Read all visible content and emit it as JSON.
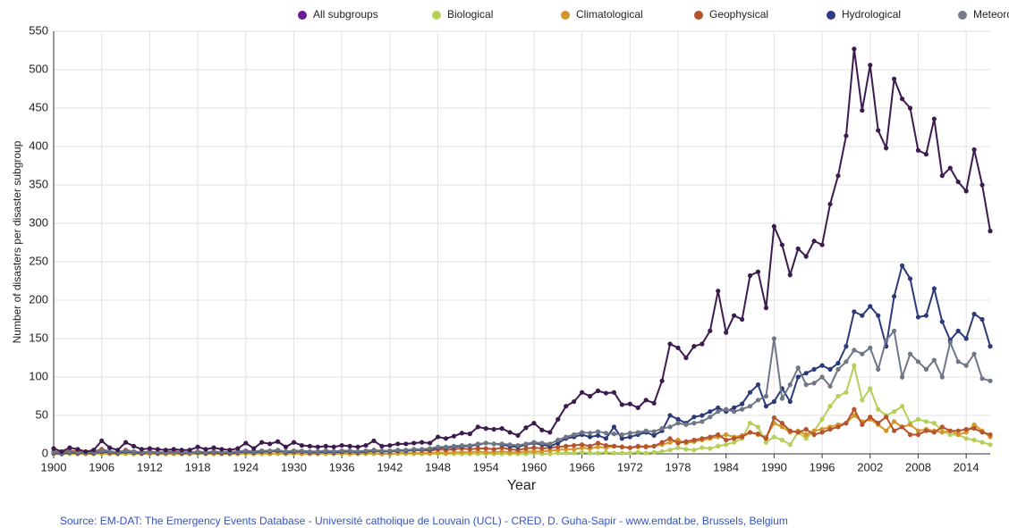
{
  "chart_data": {
    "type": "line",
    "xlabel": "Year",
    "ylabel": "Number of disasters per  disaster subgroup",
    "source": "Source: EM-DAT: The Emergency Events Database - Université catholique de Louvain (UCL) - CRED, D. Guha-Sapir - www.emdat.be, Brussels, Belgium",
    "xlim": [
      1900,
      2017
    ],
    "xticks": [
      1900,
      1906,
      1912,
      1918,
      1924,
      1930,
      1936,
      1942,
      1948,
      1954,
      1960,
      1966,
      1972,
      1978,
      1984,
      1990,
      1996,
      2002,
      2008,
      2014
    ],
    "ylim": [
      0,
      550
    ],
    "yticks": [
      0,
      50,
      100,
      150,
      200,
      250,
      300,
      350,
      400,
      450,
      500,
      550
    ],
    "grid": true,
    "legend": "top",
    "x": [
      1900,
      1901,
      1902,
      1903,
      1904,
      1905,
      1906,
      1907,
      1908,
      1909,
      1910,
      1911,
      1912,
      1913,
      1914,
      1915,
      1916,
      1917,
      1918,
      1919,
      1920,
      1921,
      1922,
      1923,
      1924,
      1925,
      1926,
      1927,
      1928,
      1929,
      1930,
      1931,
      1932,
      1933,
      1934,
      1935,
      1936,
      1937,
      1938,
      1939,
      1940,
      1941,
      1942,
      1943,
      1944,
      1945,
      1946,
      1947,
      1948,
      1949,
      1950,
      1951,
      1952,
      1953,
      1954,
      1955,
      1956,
      1957,
      1958,
      1959,
      1960,
      1961,
      1962,
      1963,
      1964,
      1965,
      1966,
      1967,
      1968,
      1969,
      1970,
      1971,
      1972,
      1973,
      1974,
      1975,
      1976,
      1977,
      1978,
      1979,
      1980,
      1981,
      1982,
      1983,
      1984,
      1985,
      1986,
      1987,
      1988,
      1989,
      1990,
      1991,
      1992,
      1993,
      1994,
      1995,
      1996,
      1997,
      1998,
      1999,
      2000,
      2001,
      2002,
      2003,
      2004,
      2005,
      2006,
      2007,
      2008,
      2009,
      2010,
      2011,
      2012,
      2013,
      2014,
      2015,
      2016,
      2017
    ],
    "series": [
      {
        "name": "All subgroups",
        "color": "#3d1b4f",
        "legend_color": "#6a1b9a",
        "values": [
          7,
          3,
          8,
          6,
          3,
          5,
          17,
          8,
          5,
          15,
          10,
          6,
          7,
          6,
          5,
          6,
          5,
          5,
          9,
          6,
          8,
          6,
          5,
          7,
          14,
          7,
          15,
          13,
          16,
          9,
          15,
          11,
          10,
          9,
          10,
          9,
          11,
          10,
          9,
          11,
          17,
          10,
          11,
          13,
          13,
          14,
          15,
          14,
          22,
          20,
          23,
          27,
          26,
          35,
          33,
          32,
          33,
          28,
          24,
          34,
          40,
          31,
          28,
          45,
          62,
          68,
          80,
          75,
          82,
          79,
          80,
          64,
          65,
          60,
          70,
          66,
          95,
          143,
          138,
          125,
          140,
          143,
          160,
          212,
          158,
          180,
          175,
          232,
          237,
          190,
          296,
          272,
          233,
          267,
          257,
          277,
          272,
          325,
          362,
          414,
          527,
          447,
          506,
          421,
          398,
          488,
          462,
          450,
          395,
          390,
          436,
          362,
          372,
          354,
          342,
          396,
          350,
          290
        ]
      },
      {
        "name": "Biological",
        "color": "#b5d05a",
        "legend_color": "#b5d05a",
        "values": [
          0,
          0,
          0,
          0,
          0,
          0,
          0,
          0,
          0,
          0,
          0,
          0,
          0,
          0,
          0,
          0,
          0,
          0,
          0,
          0,
          0,
          0,
          0,
          0,
          0,
          0,
          0,
          0,
          0,
          0,
          0,
          0,
          0,
          0,
          0,
          0,
          0,
          0,
          0,
          0,
          0,
          0,
          0,
          0,
          0,
          0,
          0,
          0,
          0,
          0,
          0,
          0,
          0,
          0,
          0,
          0,
          0,
          0,
          0,
          0,
          1,
          0,
          0,
          1,
          1,
          1,
          2,
          1,
          1,
          2,
          1,
          1,
          1,
          2,
          1,
          2,
          3,
          5,
          8,
          6,
          5,
          8,
          7,
          10,
          12,
          15,
          20,
          40,
          35,
          15,
          22,
          18,
          12,
          28,
          20,
          30,
          45,
          62,
          75,
          80,
          115,
          70,
          85,
          58,
          50,
          55,
          62,
          40,
          45,
          42,
          40,
          30,
          25,
          25,
          20,
          18,
          15,
          12
        ]
      },
      {
        "name": "Climatological",
        "color": "#d4962a",
        "legend_color": "#d4962a",
        "values": [
          0,
          0,
          1,
          0,
          0,
          0,
          1,
          0,
          0,
          1,
          0,
          0,
          0,
          0,
          0,
          0,
          0,
          0,
          1,
          0,
          0,
          0,
          0,
          0,
          1,
          0,
          1,
          0,
          1,
          0,
          1,
          0,
          0,
          0,
          1,
          0,
          1,
          0,
          0,
          1,
          1,
          0,
          0,
          1,
          1,
          1,
          1,
          1,
          2,
          1,
          2,
          2,
          2,
          3,
          2,
          2,
          3,
          2,
          2,
          3,
          3,
          3,
          4,
          5,
          6,
          6,
          8,
          7,
          9,
          8,
          10,
          9,
          8,
          9,
          10,
          10,
          12,
          15,
          18,
          14,
          16,
          18,
          20,
          22,
          25,
          22,
          24,
          28,
          25,
          22,
          40,
          35,
          28,
          30,
          25,
          30,
          32,
          35,
          38,
          40,
          50,
          42,
          45,
          38,
          30,
          42,
          35,
          38,
          30,
          32,
          30,
          28,
          30,
          25,
          28,
          38,
          30,
          22
        ]
      },
      {
        "name": "Geophysical",
        "color": "#b5532d",
        "legend_color": "#b5532d",
        "values": [
          3,
          2,
          4,
          3,
          2,
          3,
          6,
          3,
          2,
          5,
          3,
          2,
          3,
          2,
          2,
          3,
          2,
          2,
          3,
          2,
          3,
          2,
          2,
          3,
          4,
          3,
          4,
          3,
          4,
          3,
          4,
          3,
          3,
          3,
          4,
          3,
          4,
          3,
          3,
          4,
          5,
          3,
          4,
          4,
          4,
          5,
          5,
          4,
          6,
          5,
          6,
          7,
          6,
          7,
          7,
          6,
          8,
          6,
          5,
          7,
          8,
          7,
          8,
          9,
          10,
          11,
          12,
          10,
          14,
          11,
          10,
          9,
          8,
          10,
          9,
          10,
          15,
          20,
          14,
          16,
          18,
          20,
          22,
          25,
          18,
          20,
          22,
          28,
          26,
          20,
          47,
          40,
          30,
          28,
          32,
          25,
          28,
          32,
          35,
          40,
          58,
          38,
          48,
          40,
          48,
          30,
          35,
          25,
          25,
          30,
          28,
          35,
          30,
          30,
          32,
          33,
          28,
          25
        ]
      },
      {
        "name": "Hydrological",
        "color": "#2c3a7a",
        "legend_color": "#2c3a8a",
        "values": [
          1,
          0,
          2,
          1,
          1,
          1,
          3,
          2,
          1,
          3,
          2,
          1,
          2,
          1,
          1,
          2,
          1,
          1,
          2,
          1,
          2,
          1,
          1,
          2,
          3,
          2,
          3,
          3,
          4,
          2,
          3,
          3,
          2,
          2,
          3,
          2,
          3,
          3,
          2,
          3,
          4,
          3,
          3,
          4,
          4,
          5,
          5,
          6,
          8,
          8,
          9,
          10,
          10,
          12,
          14,
          13,
          12,
          10,
          9,
          12,
          14,
          12,
          10,
          14,
          20,
          22,
          25,
          22,
          24,
          20,
          35,
          20,
          22,
          25,
          28,
          24,
          30,
          50,
          45,
          40,
          48,
          50,
          55,
          60,
          55,
          60,
          65,
          80,
          90,
          62,
          68,
          85,
          68,
          100,
          105,
          110,
          115,
          110,
          118,
          140,
          185,
          180,
          192,
          180,
          140,
          205,
          245,
          228,
          178,
          180,
          215,
          172,
          148,
          160,
          150,
          182,
          175,
          140
        ]
      },
      {
        "name": "Meteorological",
        "color": "#6f7787",
        "legend_color": "#777f8f",
        "values": [
          2,
          1,
          3,
          2,
          1,
          2,
          4,
          3,
          2,
          4,
          3,
          2,
          2,
          2,
          1,
          2,
          2,
          1,
          3,
          2,
          3,
          2,
          2,
          3,
          4,
          3,
          4,
          4,
          5,
          3,
          4,
          4,
          3,
          3,
          4,
          3,
          4,
          4,
          3,
          4,
          5,
          4,
          4,
          5,
          5,
          6,
          6,
          7,
          9,
          9,
          10,
          11,
          11,
          13,
          14,
          13,
          13,
          12,
          11,
          13,
          15,
          14,
          13,
          18,
          22,
          25,
          28,
          27,
          29,
          27,
          26,
          25,
          27,
          28,
          30,
          29,
          33,
          35,
          40,
          38,
          40,
          42,
          48,
          55,
          58,
          55,
          58,
          62,
          70,
          75,
          150,
          72,
          90,
          112,
          90,
          92,
          100,
          88,
          110,
          120,
          135,
          130,
          138,
          110,
          148,
          160,
          100,
          130,
          120,
          110,
          122,
          100,
          145,
          120,
          115,
          130,
          98,
          95
        ]
      }
    ]
  }
}
